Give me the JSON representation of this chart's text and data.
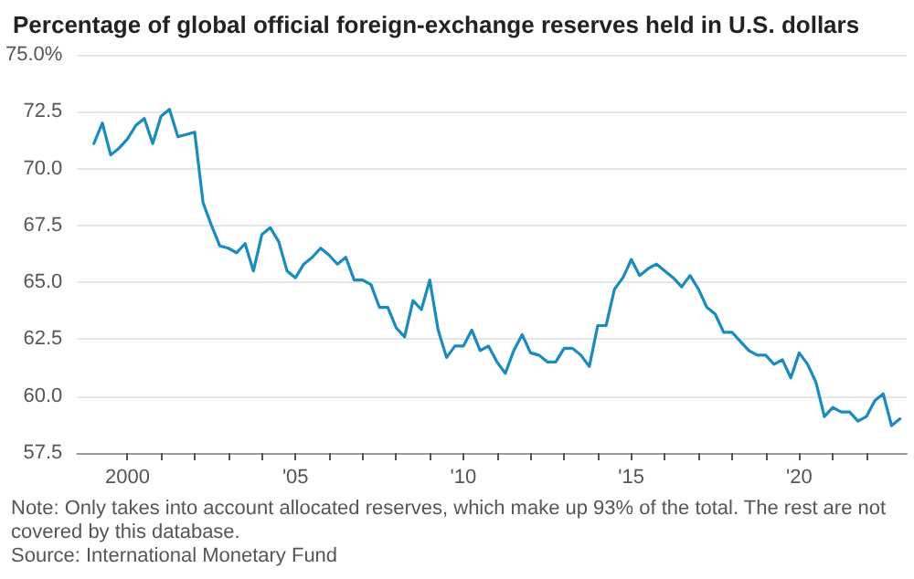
{
  "chart_data": {
    "type": "line",
    "title": "Percentage of global official foreign-exchange reserves held in U.S. dollars",
    "annotations": [
      "Note: Only takes into account allocated reserves, which make up 93% of the total. The rest are not covered by this database.",
      "Source: International Monetary Fund"
    ],
    "x": [
      1999,
      1999.25,
      1999.5,
      1999.75,
      2000,
      2000.25,
      2000.5,
      2000.75,
      2001,
      2001.25,
      2001.5,
      2001.75,
      2002,
      2002.25,
      2002.5,
      2002.75,
      2003,
      2003.25,
      2003.5,
      2003.75,
      2004,
      2004.25,
      2004.5,
      2004.75,
      2005,
      2005.25,
      2005.5,
      2005.75,
      2006,
      2006.25,
      2006.5,
      2006.75,
      2007,
      2007.25,
      2007.5,
      2007.75,
      2008,
      2008.25,
      2008.5,
      2008.75,
      2009,
      2009.25,
      2009.5,
      2009.75,
      2010,
      2010.25,
      2010.5,
      2010.75,
      2011,
      2011.25,
      2011.5,
      2011.75,
      2012,
      2012.25,
      2012.5,
      2012.75,
      2013,
      2013.25,
      2013.5,
      2013.75,
      2014,
      2014.25,
      2014.5,
      2014.75,
      2015,
      2015.25,
      2015.5,
      2015.75,
      2016,
      2016.25,
      2016.5,
      2016.75,
      2017,
      2017.25,
      2017.5,
      2017.75,
      2018,
      2018.25,
      2018.5,
      2018.75,
      2019,
      2019.25,
      2019.5,
      2019.75,
      2020,
      2020.25,
      2020.5,
      2020.75,
      2021,
      2021.25,
      2021.5,
      2021.75,
      2022,
      2022.25,
      2022.5,
      2022.75,
      2023
    ],
    "series": [
      {
        "color": "#1a8bc0",
        "values": [
          71.1,
          72.0,
          70.6,
          70.9,
          71.3,
          71.9,
          72.2,
          71.1,
          72.3,
          72.6,
          71.4,
          71.5,
          71.6,
          68.5,
          67.5,
          66.6,
          66.5,
          66.3,
          66.7,
          65.5,
          67.1,
          67.4,
          66.8,
          65.5,
          65.2,
          65.8,
          66.1,
          66.5,
          66.2,
          65.8,
          66.1,
          65.1,
          65.1,
          64.9,
          63.9,
          63.9,
          63.0,
          62.6,
          64.2,
          63.8,
          65.1,
          62.9,
          61.7,
          62.2,
          62.2,
          62.9,
          62.0,
          62.2,
          61.5,
          61.0,
          62.0,
          62.7,
          61.9,
          61.8,
          61.5,
          61.5,
          62.1,
          62.1,
          61.8,
          61.3,
          63.1,
          63.1,
          64.7,
          65.2,
          66.0,
          65.3,
          65.6,
          65.8,
          65.5,
          65.2,
          64.8,
          65.3,
          64.7,
          63.9,
          63.6,
          62.8,
          62.8,
          62.4,
          62.0,
          61.8,
          61.8,
          61.4,
          61.6,
          60.8,
          61.9,
          61.4,
          60.6,
          59.1,
          59.5,
          59.3,
          59.3,
          58.9,
          59.1,
          59.8,
          60.1,
          58.7,
          59.0
        ]
      }
    ],
    "xlim": [
      1998.5,
      2023.2
    ],
    "xticks": [
      {
        "value": 2000,
        "label": "2000"
      },
      {
        "value": 2001,
        "label": null
      },
      {
        "value": 2002,
        "label": null
      },
      {
        "value": 2003,
        "label": null
      },
      {
        "value": 2004,
        "label": null
      },
      {
        "value": 2005,
        "label": "'05"
      },
      {
        "value": 2006,
        "label": null
      },
      {
        "value": 2007,
        "label": null
      },
      {
        "value": 2008,
        "label": null
      },
      {
        "value": 2009,
        "label": null
      },
      {
        "value": 2010,
        "label": "'10"
      },
      {
        "value": 2011,
        "label": null
      },
      {
        "value": 2012,
        "label": null
      },
      {
        "value": 2013,
        "label": null
      },
      {
        "value": 2014,
        "label": null
      },
      {
        "value": 2015,
        "label": "'15"
      },
      {
        "value": 2016,
        "label": null
      },
      {
        "value": 2017,
        "label": null
      },
      {
        "value": 2018,
        "label": null
      },
      {
        "value": 2019,
        "label": null
      },
      {
        "value": 2020,
        "label": "'20"
      },
      {
        "value": 2021,
        "label": null
      },
      {
        "value": 2022,
        "label": null
      }
    ],
    "ylim": [
      57.5,
      75
    ],
    "yticks": [
      {
        "value": 57.5,
        "label": "57.5"
      },
      {
        "value": 60,
        "label": "60.0"
      },
      {
        "value": 62.5,
        "label": "62.5"
      },
      {
        "value": 65,
        "label": "65.0"
      },
      {
        "value": 67.5,
        "label": "67.5"
      },
      {
        "value": 70,
        "label": "70.0"
      },
      {
        "value": 72.5,
        "label": "72.5"
      },
      {
        "value": 75,
        "label": "75.0%"
      }
    ],
    "grid": "y",
    "marker": "none",
    "line_style": "solid"
  }
}
